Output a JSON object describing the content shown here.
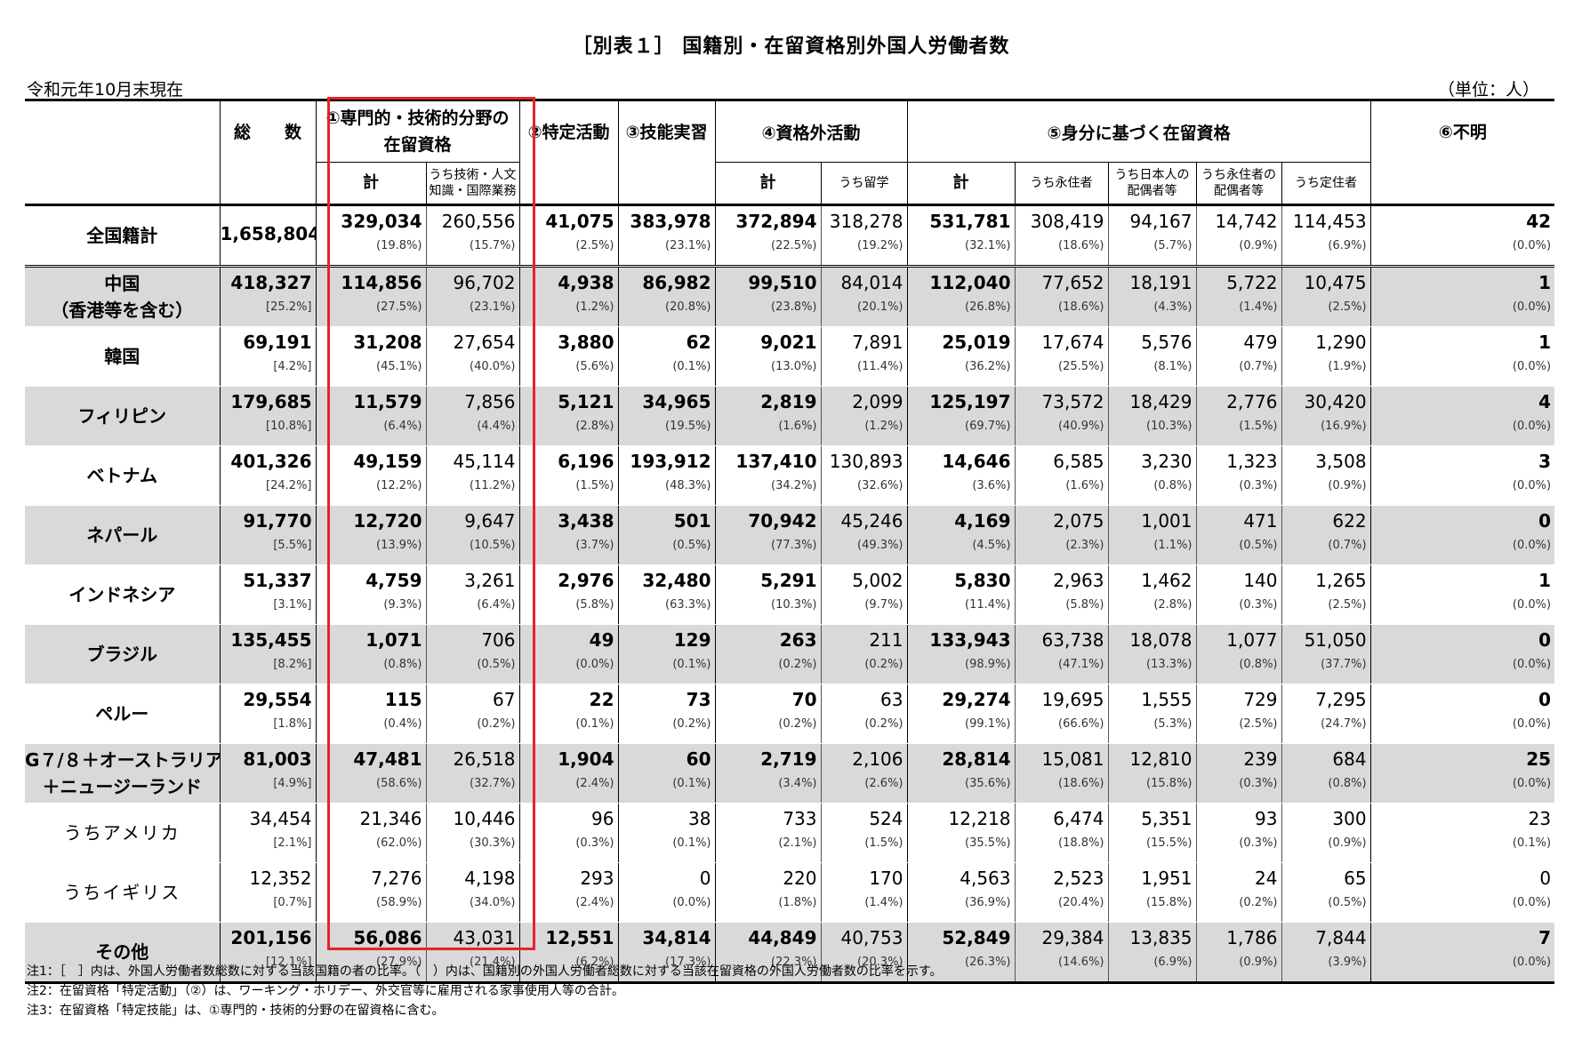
{
  "title": "［別表１］ 国籍別・在留資格別外国人労働者数",
  "as_of": "令和元年10月末現在",
  "unit": "（単位：人）",
  "headers": {
    "total": "総　　数",
    "specialist_line1": "①専門的・技術的分野の",
    "specialist_line2": "在留資格",
    "designated": "②特定活動",
    "trainee": "③技能実習",
    "non_qualified_line1": "④資格外活動",
    "status_based": "⑤身分に基づく在留資格",
    "unknown": "⑥不明",
    "sub_kei": "計",
    "sub_engineer_line1": "うち技術・人文",
    "sub_engineer_line2": "知識・国際業務",
    "sub_kei2": "計",
    "sub_student": "うち留学",
    "sub_kei3": "計",
    "sub_permanent": "うち永住者",
    "sub_spouse_jp_line1": "うち日本人の",
    "sub_spouse_jp_line2": "配偶者等",
    "sub_spouse_pr_line1": "うち永住者の",
    "sub_spouse_pr_line2": "配偶者等",
    "sub_long_term": "うち定住者"
  },
  "rows": [
    {
      "name1": "全国籍計",
      "name2": "",
      "total": "1,658,804",
      "total_pct": "",
      "cells": [
        [
          "329,034",
          "(19.8%)"
        ],
        [
          "260,556",
          "(15.7%)"
        ],
        [
          "41,075",
          "(2.5%)"
        ],
        [
          "383,978",
          "(23.1%)"
        ],
        [
          "372,894",
          "(22.5%)"
        ],
        [
          "318,278",
          "(19.2%)"
        ],
        [
          "531,781",
          "(32.1%)"
        ],
        [
          "308,419",
          "(18.6%)"
        ],
        [
          "94,167",
          "(5.7%)"
        ],
        [
          "14,742",
          "(0.9%)"
        ],
        [
          "114,453",
          "(6.9%)"
        ],
        [
          "42",
          "(0.0%)"
        ]
      ]
    },
    {
      "name1": "中国",
      "name2": "（香港等を含む）",
      "total": "418,327",
      "total_pct": "[25.2%]",
      "cells": [
        [
          "114,856",
          "(27.5%)"
        ],
        [
          "96,702",
          "(23.1%)"
        ],
        [
          "4,938",
          "(1.2%)"
        ],
        [
          "86,982",
          "(20.8%)"
        ],
        [
          "99,510",
          "(23.8%)"
        ],
        [
          "84,014",
          "(20.1%)"
        ],
        [
          "112,040",
          "(26.8%)"
        ],
        [
          "77,652",
          "(18.6%)"
        ],
        [
          "18,191",
          "(4.3%)"
        ],
        [
          "5,722",
          "(1.4%)"
        ],
        [
          "10,475",
          "(2.5%)"
        ],
        [
          "1",
          "(0.0%)"
        ]
      ]
    },
    {
      "name1": "韓国",
      "name2": "",
      "total": "69,191",
      "total_pct": "[4.2%]",
      "cells": [
        [
          "31,208",
          "(45.1%)"
        ],
        [
          "27,654",
          "(40.0%)"
        ],
        [
          "3,880",
          "(5.6%)"
        ],
        [
          "62",
          "(0.1%)"
        ],
        [
          "9,021",
          "(13.0%)"
        ],
        [
          "7,891",
          "(11.4%)"
        ],
        [
          "25,019",
          "(36.2%)"
        ],
        [
          "17,674",
          "(25.5%)"
        ],
        [
          "5,576",
          "(8.1%)"
        ],
        [
          "479",
          "(0.7%)"
        ],
        [
          "1,290",
          "(1.9%)"
        ],
        [
          "1",
          "(0.0%)"
        ]
      ]
    },
    {
      "name1": "フィリピン",
      "name2": "",
      "total": "179,685",
      "total_pct": "[10.8%]",
      "cells": [
        [
          "11,579",
          "(6.4%)"
        ],
        [
          "7,856",
          "(4.4%)"
        ],
        [
          "5,121",
          "(2.8%)"
        ],
        [
          "34,965",
          "(19.5%)"
        ],
        [
          "2,819",
          "(1.6%)"
        ],
        [
          "2,099",
          "(1.2%)"
        ],
        [
          "125,197",
          "(69.7%)"
        ],
        [
          "73,572",
          "(40.9%)"
        ],
        [
          "18,429",
          "(10.3%)"
        ],
        [
          "2,776",
          "(1.5%)"
        ],
        [
          "30,420",
          "(16.9%)"
        ],
        [
          "4",
          "(0.0%)"
        ]
      ]
    },
    {
      "name1": "ベトナム",
      "name2": "",
      "total": "401,326",
      "total_pct": "[24.2%]",
      "cells": [
        [
          "49,159",
          "(12.2%)"
        ],
        [
          "45,114",
          "(11.2%)"
        ],
        [
          "6,196",
          "(1.5%)"
        ],
        [
          "193,912",
          "(48.3%)"
        ],
        [
          "137,410",
          "(34.2%)"
        ],
        [
          "130,893",
          "(32.6%)"
        ],
        [
          "14,646",
          "(3.6%)"
        ],
        [
          "6,585",
          "(1.6%)"
        ],
        [
          "3,230",
          "(0.8%)"
        ],
        [
          "1,323",
          "(0.3%)"
        ],
        [
          "3,508",
          "(0.9%)"
        ],
        [
          "3",
          "(0.0%)"
        ]
      ]
    },
    {
      "name1": "ネパール",
      "name2": "",
      "total": "91,770",
      "total_pct": "[5.5%]",
      "cells": [
        [
          "12,720",
          "(13.9%)"
        ],
        [
          "9,647",
          "(10.5%)"
        ],
        [
          "3,438",
          "(3.7%)"
        ],
        [
          "501",
          "(0.5%)"
        ],
        [
          "70,942",
          "(77.3%)"
        ],
        [
          "45,246",
          "(49.3%)"
        ],
        [
          "4,169",
          "(4.5%)"
        ],
        [
          "2,075",
          "(2.3%)"
        ],
        [
          "1,001",
          "(1.1%)"
        ],
        [
          "471",
          "(0.5%)"
        ],
        [
          "622",
          "(0.7%)"
        ],
        [
          "0",
          "(0.0%)"
        ]
      ]
    },
    {
      "name1": "インドネシア",
      "name2": "",
      "total": "51,337",
      "total_pct": "[3.1%]",
      "cells": [
        [
          "4,759",
          "(9.3%)"
        ],
        [
          "3,261",
          "(6.4%)"
        ],
        [
          "2,976",
          "(5.8%)"
        ],
        [
          "32,480",
          "(63.3%)"
        ],
        [
          "5,291",
          "(10.3%)"
        ],
        [
          "5,002",
          "(9.7%)"
        ],
        [
          "5,830",
          "(11.4%)"
        ],
        [
          "2,963",
          "(5.8%)"
        ],
        [
          "1,462",
          "(2.8%)"
        ],
        [
          "140",
          "(0.3%)"
        ],
        [
          "1,265",
          "(2.5%)"
        ],
        [
          "1",
          "(0.0%)"
        ]
      ]
    },
    {
      "name1": "ブラジル",
      "name2": "",
      "total": "135,455",
      "total_pct": "[8.2%]",
      "cells": [
        [
          "1,071",
          "(0.8%)"
        ],
        [
          "706",
          "(0.5%)"
        ],
        [
          "49",
          "(0.0%)"
        ],
        [
          "129",
          "(0.1%)"
        ],
        [
          "263",
          "(0.2%)"
        ],
        [
          "211",
          "(0.2%)"
        ],
        [
          "133,943",
          "(98.9%)"
        ],
        [
          "63,738",
          "(47.1%)"
        ],
        [
          "18,078",
          "(13.3%)"
        ],
        [
          "1,077",
          "(0.8%)"
        ],
        [
          "51,050",
          "(37.7%)"
        ],
        [
          "0",
          "(0.0%)"
        ]
      ]
    },
    {
      "name1": "ペルー",
      "name2": "",
      "total": "29,554",
      "total_pct": "[1.8%]",
      "cells": [
        [
          "115",
          "(0.4%)"
        ],
        [
          "67",
          "(0.2%)"
        ],
        [
          "22",
          "(0.1%)"
        ],
        [
          "73",
          "(0.2%)"
        ],
        [
          "70",
          "(0.2%)"
        ],
        [
          "63",
          "(0.2%)"
        ],
        [
          "29,274",
          "(99.1%)"
        ],
        [
          "19,695",
          "(66.6%)"
        ],
        [
          "1,555",
          "(5.3%)"
        ],
        [
          "729",
          "(2.5%)"
        ],
        [
          "7,295",
          "(24.7%)"
        ],
        [
          "0",
          "(0.0%)"
        ]
      ]
    },
    {
      "name1": "G７/８＋オーストラリア",
      "name2": "＋ニュージーランド",
      "total": "81,003",
      "total_pct": "[4.9%]",
      "cells": [
        [
          "47,481",
          "(58.6%)"
        ],
        [
          "26,518",
          "(32.7%)"
        ],
        [
          "1,904",
          "(2.4%)"
        ],
        [
          "60",
          "(0.1%)"
        ],
        [
          "2,719",
          "(3.4%)"
        ],
        [
          "2,106",
          "(2.6%)"
        ],
        [
          "28,814",
          "(35.6%)"
        ],
        [
          "15,081",
          "(18.6%)"
        ],
        [
          "12,810",
          "(15.8%)"
        ],
        [
          "239",
          "(0.3%)"
        ],
        [
          "684",
          "(0.8%)"
        ],
        [
          "25",
          "(0.0%)"
        ]
      ]
    },
    {
      "name1": "うちアメリカ",
      "name2": "",
      "total": "34,454",
      "total_pct": "[2.1%]",
      "cells": [
        [
          "21,346",
          "(62.0%)"
        ],
        [
          "10,446",
          "(30.3%)"
        ],
        [
          "96",
          "(0.3%)"
        ],
        [
          "38",
          "(0.1%)"
        ],
        [
          "733",
          "(2.1%)"
        ],
        [
          "524",
          "(1.5%)"
        ],
        [
          "12,218",
          "(35.5%)"
        ],
        [
          "6,474",
          "(18.8%)"
        ],
        [
          "5,351",
          "(15.5%)"
        ],
        [
          "93",
          "(0.3%)"
        ],
        [
          "300",
          "(0.9%)"
        ],
        [
          "23",
          "(0.1%)"
        ]
      ]
    },
    {
      "name1": "うちイギリス",
      "name2": "",
      "total": "12,352",
      "total_pct": "[0.7%]",
      "cells": [
        [
          "7,276",
          "(58.9%)"
        ],
        [
          "4,198",
          "(34.0%)"
        ],
        [
          "293",
          "(2.4%)"
        ],
        [
          "0",
          "(0.0%)"
        ],
        [
          "220",
          "(1.8%)"
        ],
        [
          "170",
          "(1.4%)"
        ],
        [
          "4,563",
          "(36.9%)"
        ],
        [
          "2,523",
          "(20.4%)"
        ],
        [
          "1,951",
          "(15.8%)"
        ],
        [
          "24",
          "(0.2%)"
        ],
        [
          "65",
          "(0.5%)"
        ],
        [
          "0",
          "(0.0%)"
        ]
      ]
    },
    {
      "name1": "その他",
      "name2": "",
      "total": "201,156",
      "total_pct": "[12.1%]",
      "cells": [
        [
          "56,086",
          "(27.9%)"
        ],
        [
          "43,031",
          "(21.4%)"
        ],
        [
          "12,551",
          "(6.2%)"
        ],
        [
          "34,814",
          "(17.3%)"
        ],
        [
          "44,849",
          "(22.3%)"
        ],
        [
          "40,753",
          "(20.3%)"
        ],
        [
          "52,849",
          "(26.3%)"
        ],
        [
          "29,384",
          "(14.6%)"
        ],
        [
          "13,835",
          "(6.9%)"
        ],
        [
          "1,786",
          "(0.9%)"
        ],
        [
          "7,844",
          "(3.9%)"
        ],
        [
          "7",
          "(0.0%)"
        ]
      ]
    }
  ],
  "notes": [
    "注1：［　］内は、外国人労働者数総数に対する当該国籍の者の比率。（　）内は、国籍別の外国人労働者総数に対する当該在留資格の外国人労働者数の比率を示す。",
    "注2：在留資格「特定活動」（②）は、ワーキング・ホリデー、外交官等に雇用される家事使用人等の合計。",
    "注3：在留資格「特定技能」は、①専門的・技術的分野の在留資格に含む。"
  ]
}
